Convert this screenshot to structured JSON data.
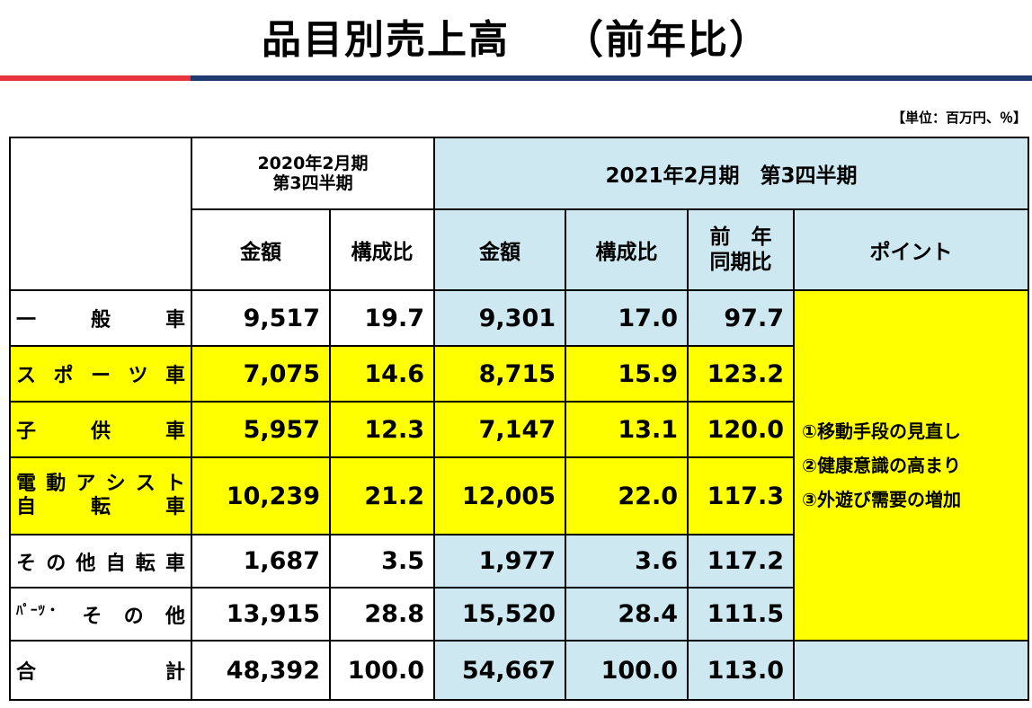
{
  "title": {
    "main": "品目別売上高",
    "sub": "（前年比）"
  },
  "unit": "【単位：百万円、％】",
  "header": {
    "period_prev": "2020年2月期",
    "period_prev_q": "第3四半期",
    "period_curr": "2021年2月期　第3四半期",
    "col_amount": "金額",
    "col_ratio": "構成比",
    "col_yoy_1": "前　年",
    "col_yoy_2": "同期比",
    "col_point": "ポイント"
  },
  "rows": [
    {
      "label": "一般車",
      "prev_amount": "9,517",
      "prev_ratio": "19.7",
      "amount": "9,301",
      "ratio": "17.0",
      "yoy": "97.7"
    },
    {
      "label": "スポーツ車",
      "prev_amount": "7,075",
      "prev_ratio": "14.6",
      "amount": "8,715",
      "ratio": "15.9",
      "yoy": "123.2"
    },
    {
      "label": "子供車",
      "prev_amount": "5,957",
      "prev_ratio": "12.3",
      "amount": "7,147",
      "ratio": "13.1",
      "yoy": "120.0"
    },
    {
      "label": "電動アシスト自転車",
      "prev_amount": "10,239",
      "prev_ratio": "21.2",
      "amount": "12,005",
      "ratio": "22.0",
      "yoy": "117.3"
    },
    {
      "label": "その他自転車",
      "prev_amount": "1,687",
      "prev_ratio": "3.5",
      "amount": "1,977",
      "ratio": "3.6",
      "yoy": "117.2"
    },
    {
      "label": "ﾊﾟｰﾂ・その他",
      "prev_amount": "13,915",
      "prev_ratio": "28.8",
      "amount": "15,520",
      "ratio": "28.4",
      "yoy": "111.5"
    },
    {
      "label": "合計",
      "prev_amount": "48,392",
      "prev_ratio": "100.0",
      "amount": "54,667",
      "ratio": "100.0",
      "yoy": "113.0"
    }
  ],
  "points": [
    "①移動手段の見直し",
    "②健康意識の高まり",
    "③外遊び需要の増加"
  ]
}
